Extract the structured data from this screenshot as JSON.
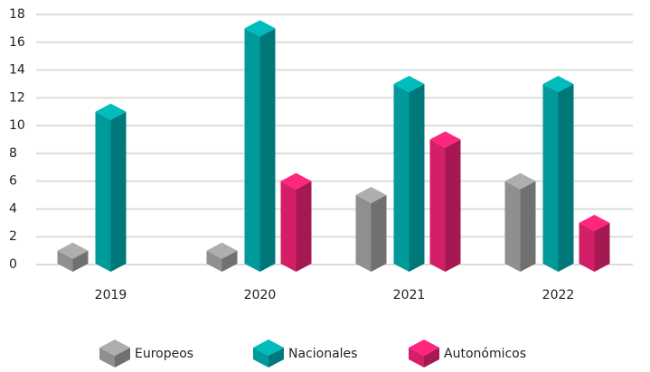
{
  "chart_data": {
    "type": "bar3d",
    "categories": [
      "2019",
      "2020",
      "2021",
      "2022"
    ],
    "series": [
      {
        "name": "Europeos",
        "color": "#8f8f8f",
        "values": [
          1,
          1,
          5,
          6
        ]
      },
      {
        "name": "Nacionales",
        "color": "#009a9b",
        "values": [
          11,
          17,
          13,
          13
        ]
      },
      {
        "name": "Autonómicos",
        "color": "#d41f68",
        "values": [
          null,
          6,
          9,
          3
        ]
      }
    ],
    "ylim": [
      0,
      18
    ],
    "yticks": [
      0,
      2,
      4,
      6,
      8,
      10,
      12,
      14,
      16,
      18
    ],
    "grid": true,
    "legend": "bottom"
  }
}
